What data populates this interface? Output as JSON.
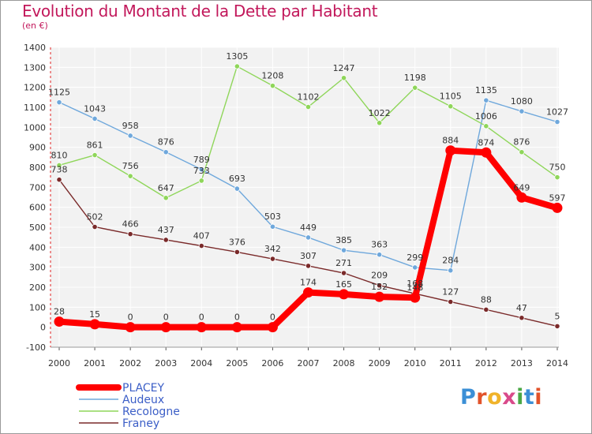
{
  "title": "Evolution du Montant de la Dette par Habitant",
  "subtitle": "(en €)",
  "logo": {
    "text": "Proxiti",
    "colors": [
      "#3b8fd6",
      "#e2532b",
      "#f0b32a",
      "#d94a8a",
      "#4aa845",
      "#3b8fd6",
      "#e2532b"
    ]
  },
  "chart_data": {
    "type": "line",
    "x": [
      "2000",
      "2001",
      "2002",
      "2003",
      "2004",
      "2005",
      "2006",
      "2007",
      "2008",
      "2009",
      "2010",
      "2011",
      "2012",
      "2013",
      "2014"
    ],
    "ylim": [
      -100,
      1400
    ],
    "yticks": [
      -100,
      0,
      100,
      200,
      300,
      400,
      500,
      600,
      700,
      800,
      900,
      1000,
      1100,
      1200,
      1300,
      1400
    ],
    "grid": true,
    "legend_position": "bottom-left",
    "series": [
      {
        "name": "PLACEY",
        "color": "#ff0000",
        "values": [
          28,
          15,
          0,
          0,
          0,
          0,
          0,
          174,
          165,
          152,
          148,
          884,
          874,
          649,
          597
        ]
      },
      {
        "name": "Audeux",
        "color": "#6fa8dc",
        "values": [
          1125,
          1043,
          958,
          876,
          789,
          693,
          503,
          449,
          385,
          363,
          299,
          284,
          1135,
          1080,
          1027
        ]
      },
      {
        "name": "Recologne",
        "color": "#8fd65a",
        "values": [
          810,
          861,
          756,
          647,
          733,
          1305,
          1208,
          1102,
          1247,
          1022,
          1198,
          1105,
          1006,
          876,
          750
        ]
      },
      {
        "name": "Franey",
        "color": "#7a2a2a",
        "values": [
          738,
          502,
          466,
          437,
          407,
          376,
          342,
          307,
          271,
          209,
          168,
          127,
          88,
          47,
          5
        ]
      }
    ]
  }
}
